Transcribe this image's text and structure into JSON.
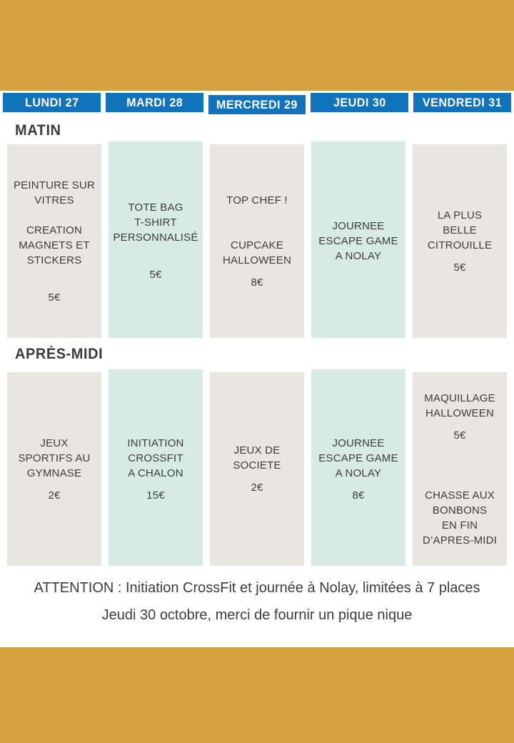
{
  "theme": {
    "band": "#D4A040",
    "tab": "#1273BD",
    "tab_text": "#FFFFFF",
    "gray": "#E9E6E1",
    "mint": "#D7EBE4",
    "text": "#3B3B3A",
    "note": "#3C3C3C"
  },
  "days": [
    "LUNDI 27",
    "MARDI 28",
    "MERCREDI 29",
    "JEUDI 30",
    "VENDREDI 31"
  ],
  "sections": [
    {
      "label": "MATIN",
      "cards": [
        {
          "lines": [
            "PEINTURE SUR",
            "VITRES",
            "",
            "CREATION",
            "MAGNETS ET",
            "STICKERS",
            "",
            "5€"
          ]
        },
        {
          "lines": [
            "TOTE BAG",
            "T-SHIRT",
            "PERSONNALISÉ",
            "",
            "5€"
          ]
        },
        {
          "lines": [
            "TOP CHEF !",
            "",
            "",
            "CUPCAKE",
            "HALLOWEEN",
            "8€"
          ]
        },
        {
          "lines": [
            "JOURNEE",
            "ESCAPE GAME",
            "A NOLAY"
          ]
        },
        {
          "lines": [
            "LA PLUS",
            "BELLE",
            "CITROUILLE",
            "5€"
          ]
        }
      ]
    },
    {
      "label": "APRÈS-MIDI",
      "cards": [
        {
          "lines": [
            "JEUX",
            "SPORTIFS AU",
            "GYMNASE",
            "2€"
          ]
        },
        {
          "lines": [
            "INITIATION",
            "CROSSFIT",
            "A CHALON",
            "15€"
          ]
        },
        {
          "lines": [
            "JEUX DE",
            "SOCIETE",
            "2€"
          ]
        },
        {
          "lines": [
            "JOURNEE",
            "ESCAPE GAME",
            "A NOLAY",
            "8€"
          ]
        },
        {
          "lines": [
            "MAQUILLAGE",
            "HALLOWEEN",
            "5€",
            "",
            "",
            "",
            "CHASSE AUX",
            "BONBONS",
            "EN FIN",
            "D’APRES-MIDI"
          ]
        }
      ]
    }
  ],
  "notes": [
    "ATTENTION : Initiation CrossFit et journée à Nolay, limitées à 7 places",
    "Jeudi 30 octobre, merci de fournir un pique nique"
  ]
}
